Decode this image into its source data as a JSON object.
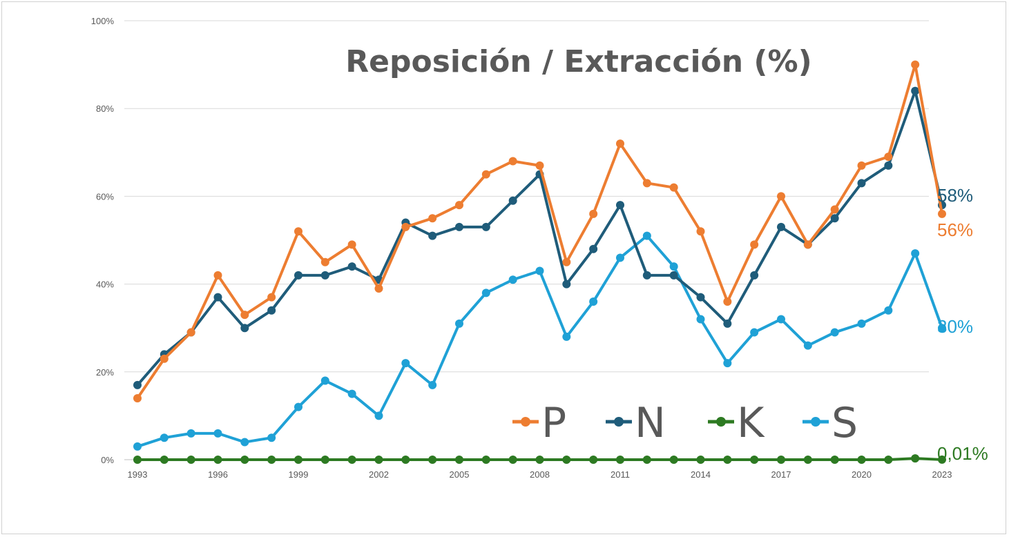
{
  "chart_data": {
    "type": "line",
    "title": "Reposición / Extracción (%)",
    "xlabel": "",
    "ylabel": "",
    "ylim": [
      0,
      100
    ],
    "y_ticks": [
      "0%",
      "20%",
      "40%",
      "60%",
      "80%",
      "100%"
    ],
    "x_tick_labels": [
      "1993",
      "1996",
      "1999",
      "2002",
      "2005",
      "2008",
      "2011",
      "2014",
      "2017",
      "2020",
      "2023"
    ],
    "x": [
      1993,
      1994,
      1995,
      1996,
      1997,
      1998,
      1999,
      2000,
      2001,
      2002,
      2003,
      2004,
      2005,
      2006,
      2007,
      2008,
      2009,
      2010,
      2011,
      2012,
      2013,
      2014,
      2015,
      2016,
      2017,
      2018,
      2019,
      2020,
      2021,
      2022,
      2023
    ],
    "grid": true,
    "legend_position": "bottom-right",
    "series": [
      {
        "name": "P",
        "color": "#ED7D31",
        "values": [
          14,
          23,
          29,
          42,
          33,
          37,
          52,
          45,
          49,
          39,
          53,
          55,
          58,
          65,
          68,
          67,
          45,
          56,
          72,
          63,
          62,
          52,
          36,
          49,
          60,
          49,
          57,
          67,
          69,
          90,
          56
        ],
        "end_label": "56%"
      },
      {
        "name": "N",
        "color": "#1F5C7A",
        "values": [
          17,
          24,
          29,
          37,
          30,
          34,
          42,
          42,
          44,
          41,
          54,
          51,
          53,
          53,
          59,
          65,
          40,
          48,
          58,
          42,
          42,
          37,
          31,
          42,
          53,
          49,
          55,
          63,
          67,
          84,
          58
        ],
        "end_label": "58%"
      },
      {
        "name": "K",
        "color": "#2D7A22",
        "values": [
          0,
          0,
          0,
          0,
          0,
          0,
          0,
          0,
          0,
          0,
          0,
          0,
          0,
          0,
          0,
          0,
          0,
          0,
          0,
          0,
          0,
          0,
          0,
          0,
          0,
          0,
          0,
          0,
          0,
          0.3,
          0.01
        ],
        "end_label": "0,01%"
      },
      {
        "name": "S",
        "color": "#1FA1D6",
        "values": [
          3,
          5,
          6,
          6,
          4,
          5,
          12,
          18,
          15,
          10,
          22,
          17,
          31,
          38,
          41,
          43,
          28,
          36,
          46,
          51,
          44,
          32,
          22,
          29,
          32,
          26,
          29,
          31,
          34,
          47,
          30
        ],
        "end_label": "30%"
      }
    ]
  }
}
